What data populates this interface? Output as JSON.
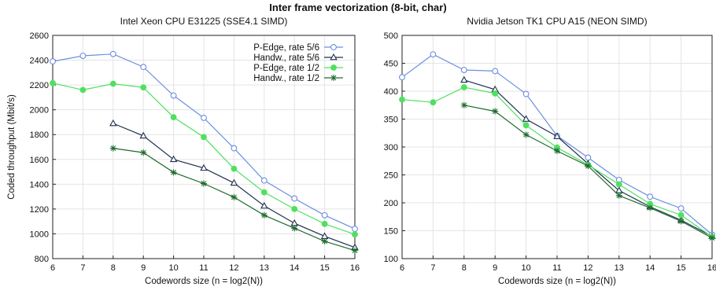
{
  "figure": {
    "title": "Inter frame vectorization (8-bit, char)"
  },
  "chart_data": [
    {
      "type": "line",
      "title": "Intel Xeon CPU E31225 (SSE4.1 SIMD)",
      "xlabel": "Codewords size (n = log2(N))",
      "ylabel": "Coded throughput (Mbit/s)",
      "xlim": [
        6,
        16
      ],
      "ylim": [
        800,
        2600
      ],
      "xticks": [
        6,
        7,
        8,
        9,
        10,
        11,
        12,
        13,
        14,
        15,
        16
      ],
      "yticks": [
        800,
        1000,
        1200,
        1400,
        1600,
        1800,
        2000,
        2200,
        2400,
        2600
      ],
      "grid": true,
      "legend": "top-right",
      "series": [
        {
          "name": "P-Edge, rate 5/6",
          "color": "#6b8fe0",
          "marker": "open-circle",
          "x": [
            6,
            7,
            8,
            9,
            10,
            11,
            12,
            13,
            14,
            15,
            16
          ],
          "values": [
            2390,
            2435,
            2450,
            2345,
            2115,
            1935,
            1690,
            1430,
            1285,
            1150,
            1040
          ]
        },
        {
          "name": "Handw., rate 5/6",
          "color": "#1f2f4f",
          "marker": "open-triangle",
          "x": [
            8,
            9,
            10,
            11,
            12,
            13,
            14,
            15,
            16
          ],
          "values": [
            1890,
            1790,
            1600,
            1530,
            1410,
            1225,
            1085,
            980,
            890
          ]
        },
        {
          "name": "P-Edge, rate 1/2",
          "color": "#4fe060",
          "marker": "filled-circle",
          "x": [
            6,
            7,
            8,
            9,
            10,
            11,
            12,
            13,
            14,
            15,
            16
          ],
          "values": [
            2215,
            2160,
            2210,
            2180,
            1940,
            1780,
            1525,
            1335,
            1200,
            1080,
            995
          ]
        },
        {
          "name": "Handw., rate 1/2",
          "color": "#1e6b2e",
          "marker": "star",
          "x": [
            8,
            9,
            10,
            11,
            12,
            13,
            14,
            15,
            16
          ],
          "values": [
            1690,
            1655,
            1495,
            1405,
            1295,
            1150,
            1045,
            940,
            865
          ]
        }
      ]
    },
    {
      "type": "line",
      "title": "Nvidia Jetson TK1 CPU A15 (NEON SIMD)",
      "xlabel": "Codewords size (n = log2(N))",
      "ylabel": "",
      "xlim": [
        6,
        16
      ],
      "ylim": [
        100,
        500
      ],
      "xticks": [
        6,
        7,
        8,
        9,
        10,
        11,
        12,
        13,
        14,
        15,
        16
      ],
      "yticks": [
        100,
        150,
        200,
        250,
        300,
        350,
        400,
        450,
        500
      ],
      "grid": true,
      "legend": "none",
      "series": [
        {
          "color": "#6b8fe0",
          "marker": "open-circle",
          "x": [
            6,
            7,
            8,
            9,
            10,
            11,
            12,
            13,
            14,
            15,
            16
          ],
          "values": [
            425,
            466,
            438,
            436,
            395,
            320,
            281,
            241,
            211,
            190,
            143
          ]
        },
        {
          "color": "#1f2f4f",
          "marker": "open-triangle",
          "x": [
            8,
            9,
            10,
            11,
            12,
            13,
            14,
            15,
            16
          ],
          "values": [
            420,
            403,
            350,
            319,
            270,
            222,
            193,
            169,
            140
          ]
        },
        {
          "color": "#4fe060",
          "marker": "filled-circle",
          "x": [
            6,
            7,
            8,
            9,
            10,
            11,
            12,
            13,
            14,
            15,
            16
          ],
          "values": [
            385,
            380,
            407,
            396,
            339,
            299,
            268,
            233,
            198,
            178,
            139
          ]
        },
        {
          "color": "#1e6b2e",
          "marker": "star",
          "x": [
            8,
            9,
            10,
            11,
            12,
            13,
            14,
            15,
            16
          ],
          "values": [
            375,
            364,
            322,
            293,
            266,
            213,
            191,
            167,
            137
          ]
        }
      ]
    }
  ]
}
